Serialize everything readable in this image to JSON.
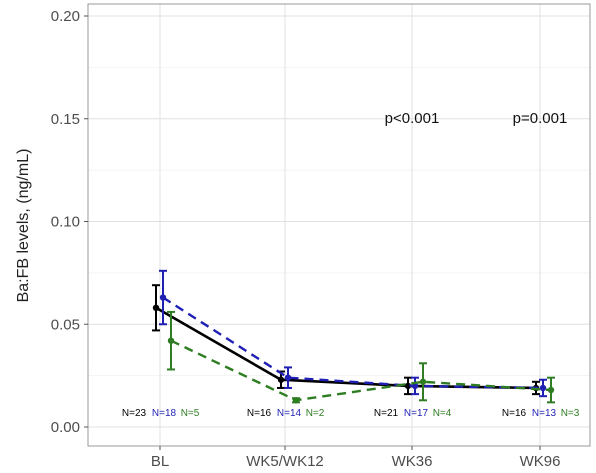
{
  "chart_data": {
    "type": "line",
    "xlabel": "",
    "ylabel": "Ba:FB levels, (ng/mL)",
    "categories": [
      "BL",
      "WK5/WK12",
      "WK36",
      "WK96"
    ],
    "ylim": [
      0,
      0.2
    ],
    "yticks": [
      "0.00",
      "0.05",
      "0.10",
      "0.15",
      "0.20"
    ],
    "grid": true,
    "series": [
      {
        "key": "all",
        "color": "#000000",
        "dash": "solid",
        "values": [
          0.058,
          0.023,
          0.02,
          0.019
        ],
        "err": [
          0.011,
          0.004,
          0.004,
          0.003
        ],
        "n_labels": [
          "N=23",
          "N=16",
          "N=21",
          "N=16"
        ]
      },
      {
        "key": "blue",
        "color": "#1f1fb4",
        "dash": "dashed",
        "values": [
          0.063,
          0.024,
          0.02,
          0.019
        ],
        "err": [
          0.013,
          0.005,
          0.004,
          0.004
        ],
        "n_labels": [
          "N=18",
          "N=14",
          "N=17",
          "N=13"
        ]
      },
      {
        "key": "green",
        "color": "#2e7d22",
        "dash": "dashed",
        "values": [
          0.042,
          0.013,
          0.022,
          0.018
        ],
        "err": [
          0.014,
          0.001,
          0.009,
          0.006
        ],
        "n_labels": [
          "N=5",
          "N=2",
          "N=4",
          "N=3"
        ]
      }
    ],
    "annotations": [
      {
        "text": "p<0.001",
        "category": "WK36",
        "y": 0.15
      },
      {
        "text": "p=0.001",
        "category": "WK96",
        "y": 0.15
      }
    ]
  }
}
